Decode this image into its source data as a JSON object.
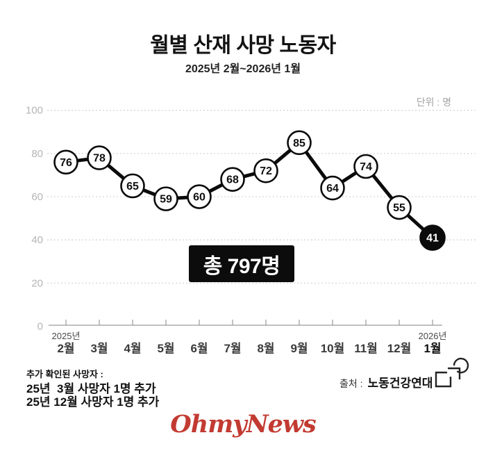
{
  "header": {
    "title": "월별 산재 사망 노동자",
    "subtitle": "2025년 2월~2026년 1월"
  },
  "chart_data": {
    "type": "line",
    "title": "월별 산재 사망 노동자",
    "subtitle": "2025년 2월~2026년 1월",
    "unit_label": "단위 : 명",
    "categories": [
      "2월",
      "3월",
      "4월",
      "5월",
      "6월",
      "7월",
      "8월",
      "9월",
      "10월",
      "11월",
      "12월",
      "1월"
    ],
    "values": [
      76,
      78,
      65,
      59,
      60,
      68,
      72,
      85,
      64,
      74,
      55,
      41
    ],
    "year_labels": [
      {
        "index": 0,
        "label": "2025년"
      },
      {
        "index": 11,
        "label": "2026년"
      }
    ],
    "ylim": [
      0,
      100
    ],
    "yticks": [
      0,
      20,
      40,
      60,
      80,
      100
    ],
    "grid": "dashed-horizontal",
    "legend": "none",
    "highlight_last_point": true,
    "total": 797,
    "total_label": "총 797명"
  },
  "footnotes": {
    "heading": "추가 확인된 사망자 :",
    "lines": [
      "25년  3월 사망자 1명 추가",
      "25년 12월 사망자 1명 추가"
    ]
  },
  "source": {
    "prefix": "출처 :",
    "name": "노동건강연대"
  },
  "credit": {
    "text": "OhmyNews"
  },
  "colors": {
    "line": "#0b0b0b",
    "point_fill": "#ffffff",
    "point_stroke": "#0b0b0b",
    "highlight_fill": "#0b0b0b",
    "highlight_text": "#ffffff",
    "value_text": "#111111",
    "grid": "#d6d6d6",
    "axis": "#999999",
    "ytick_text": "#b5b5b5",
    "month_text": "#3a3a3a",
    "year_text": "#4a4a4a",
    "badge_bg": "#0c0c0c",
    "badge_text": "#ffffff",
    "unit_text": "#a3a3a3",
    "credit_red": "#c23b32"
  }
}
